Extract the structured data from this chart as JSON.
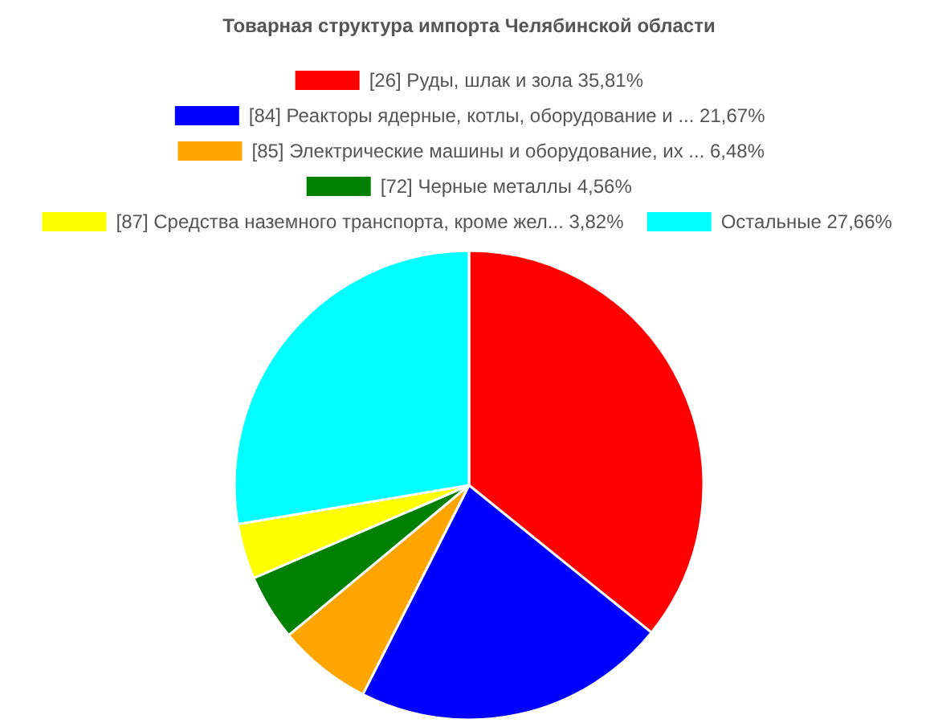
{
  "chart_data": {
    "type": "pie",
    "title": "Товарная структура импорта Челябинской области",
    "categories": [
      "[26] Руды, шлак и зола 35,81%",
      "[84] Реакторы ядерные, котлы, оборудование и ... 21,67%",
      "[85] Электрические машины и оборудование, их ... 6,48%",
      "[72] Черные металлы 4,56%",
      "[87] Средства наземного транспорта, кроме жел... 3,82%",
      "Остальные  27,66%"
    ],
    "values": [
      35.81,
      21.67,
      6.48,
      4.56,
      3.82,
      27.66
    ],
    "colors": [
      "#ff0000",
      "#0000ff",
      "#ffa500",
      "#008000",
      "#ffff00",
      "#00ffff"
    ],
    "legend": "top"
  }
}
